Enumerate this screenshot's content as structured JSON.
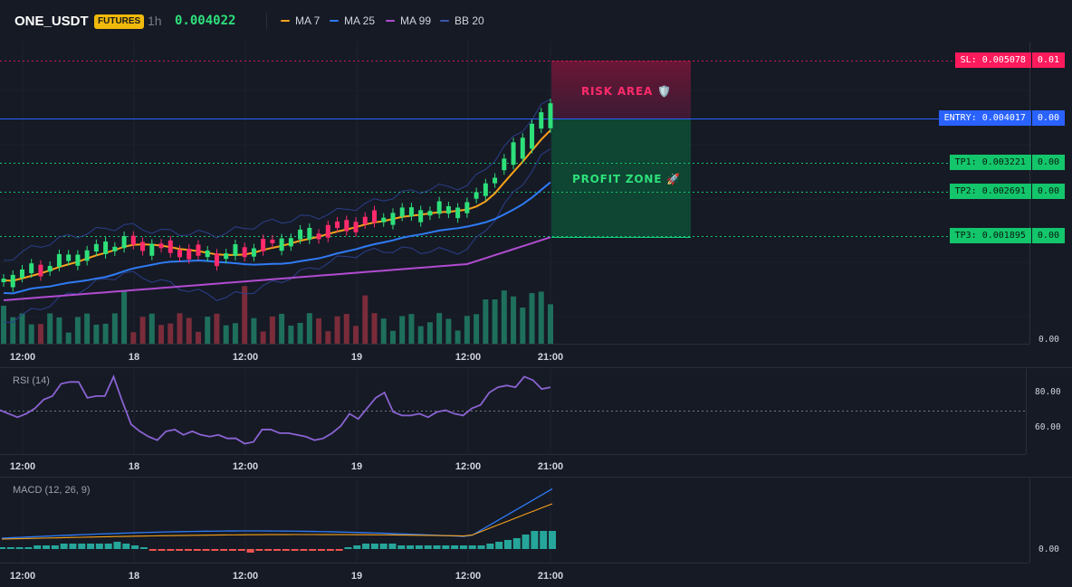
{
  "header": {
    "symbol": "ONE_USDT",
    "badge": "FUTURES",
    "timeframe": "1h",
    "price": "0.004022",
    "indicators": [
      {
        "label": "MA 7",
        "color": "#f7a21b"
      },
      {
        "label": "MA 25",
        "color": "#2f7bf5"
      },
      {
        "label": "MA 99",
        "color": "#b14cd1"
      },
      {
        "label": "BB 20",
        "color": "#3a56b0"
      }
    ]
  },
  "levels": {
    "sl": {
      "label": "SL: 0.005078",
      "value": "0.01",
      "color": "#ff1a5c"
    },
    "entry": {
      "label": "ENTRY: 0.004017",
      "value": "0.00",
      "color": "#2962ff"
    },
    "tp1": {
      "label": "TP1: 0.003221",
      "value": "0.00",
      "color": "#13c66b"
    },
    "tp2": {
      "label": "TP2: 0.002691",
      "value": "0.00",
      "color": "#13c66b"
    },
    "tp3": {
      "label": "TP3: 0.001895",
      "value": "0.00",
      "color": "#13c66b"
    }
  },
  "zones": {
    "risk": "RISK AREA 🛡️",
    "profit": "PROFIT ZONE 🚀"
  },
  "main_axis": {
    "bottom_label": "0.00"
  },
  "time_axis": [
    "12:00",
    "18",
    "12:00",
    "19",
    "12:00",
    "21:00"
  ],
  "rsi": {
    "name": "RSI (14)",
    "ticks": [
      "80.00",
      "60.00"
    ],
    "color": "#8a63d2"
  },
  "macd": {
    "name": "MACD (12, 26, 9)",
    "ticks": [
      "0.00"
    ]
  },
  "chart_data": {
    "type": "line",
    "candles_direction": [
      "up",
      "up",
      "up",
      "up",
      "down",
      "up",
      "up",
      "up",
      "up",
      "up",
      "up",
      "up",
      "up",
      "up",
      "down",
      "down",
      "up",
      "down",
      "down",
      "down",
      "down",
      "down",
      "up",
      "down",
      "up",
      "up",
      "down",
      "up",
      "down",
      "down",
      "up",
      "up",
      "up",
      "up",
      "down",
      "down",
      "down",
      "down",
      "down",
      "down",
      "down",
      "up",
      "up",
      "up",
      "up",
      "up",
      "up",
      "up",
      "up",
      "up",
      "up",
      "up",
      "up",
      "up",
      "up",
      "up",
      "up",
      "up",
      "up",
      "up"
    ],
    "rsi_values": [
      70,
      68,
      66,
      68,
      71,
      76,
      78,
      85,
      86,
      86,
      77,
      78,
      78,
      89,
      75,
      62,
      58,
      55,
      53,
      58,
      59,
      56,
      58,
      56,
      55,
      56,
      54,
      54,
      51,
      52,
      59,
      59,
      57,
      57,
      56,
      55,
      53,
      54,
      57,
      61,
      68,
      65,
      71,
      77,
      80,
      69,
      67,
      67,
      68,
      66,
      69,
      70,
      68,
      67,
      71,
      73,
      80,
      83,
      84,
      83,
      89,
      87,
      82,
      83
    ],
    "macd_hist": [
      1,
      1,
      1,
      1,
      2,
      2,
      2,
      3,
      3,
      3,
      3,
      3,
      3,
      4,
      3,
      2,
      1,
      -1,
      -1,
      -1,
      -1,
      -1,
      -1,
      -1,
      -1,
      -1,
      -1,
      -1,
      -2,
      -1,
      -1,
      -1,
      -1,
      -1,
      -1,
      -1,
      -1,
      -1,
      -1,
      1,
      2,
      3,
      3,
      3,
      3,
      2,
      2,
      2,
      2,
      2,
      2,
      2,
      2,
      2,
      2,
      3,
      4,
      5,
      6,
      8,
      10,
      10,
      10
    ]
  }
}
